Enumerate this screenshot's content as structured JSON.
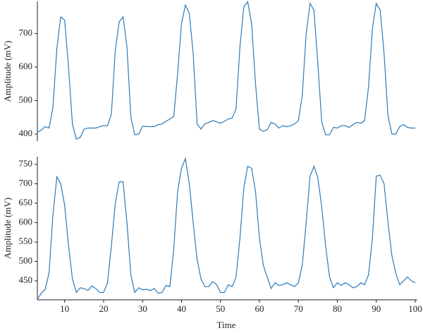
{
  "chart_data": [
    {
      "type": "line",
      "ylabel": "Amplitude (mV)",
      "x": [
        3,
        4,
        5,
        6,
        7,
        8,
        9,
        10,
        11,
        12,
        13,
        14,
        15,
        16,
        17,
        18,
        19,
        20,
        21,
        22,
        23,
        24,
        25,
        26,
        27,
        28,
        29,
        30,
        31,
        32,
        33,
        34,
        35,
        36,
        37,
        38,
        39,
        40,
        41,
        42,
        43,
        44,
        45,
        46,
        47,
        48,
        49,
        50,
        51,
        52,
        53,
        54,
        55,
        56,
        57,
        58,
        59,
        60,
        61,
        62,
        63,
        64,
        65,
        66,
        67,
        68,
        69,
        70,
        71,
        72,
        73,
        74,
        75,
        76,
        77,
        78,
        79,
        80,
        81,
        82,
        83,
        84,
        85,
        86,
        87,
        88,
        89,
        90,
        91,
        92,
        93,
        94,
        95,
        96,
        97,
        98,
        99,
        100
      ],
      "series": [
        {
          "color": "#2b7bba",
          "values": [
            405,
            412,
            422,
            418,
            480,
            655,
            750,
            740,
            600,
            430,
            385,
            390,
            415,
            418,
            418,
            418,
            422,
            425,
            425,
            460,
            650,
            735,
            750,
            660,
            450,
            398,
            400,
            423,
            423,
            422,
            422,
            428,
            430,
            438,
            445,
            452,
            580,
            730,
            785,
            760,
            640,
            430,
            415,
            430,
            435,
            440,
            437,
            432,
            438,
            445,
            448,
            475,
            660,
            780,
            795,
            730,
            550,
            415,
            408,
            413,
            435,
            430,
            418,
            425,
            422,
            425,
            430,
            440,
            515,
            700,
            790,
            770,
            610,
            435,
            398,
            398,
            420,
            418,
            425,
            425,
            420,
            428,
            435,
            432,
            440,
            540,
            715,
            790,
            770,
            640,
            455,
            400,
            400,
            422,
            428,
            420,
            418,
            418
          ]
        }
      ],
      "xlim": [
        3,
        100
      ],
      "ylim": [
        379,
        796
      ],
      "yticks": [
        400,
        500,
        600,
        700
      ]
    },
    {
      "type": "line",
      "ylabel": "Amplitude (mV)",
      "xlabel": "Time",
      "x": [
        3,
        4,
        5,
        6,
        7,
        8,
        9,
        10,
        11,
        12,
        13,
        14,
        15,
        16,
        17,
        18,
        19,
        20,
        21,
        22,
        23,
        24,
        25,
        26,
        27,
        28,
        29,
        30,
        31,
        32,
        33,
        34,
        35,
        36,
        37,
        38,
        39,
        40,
        41,
        42,
        43,
        44,
        45,
        46,
        47,
        48,
        49,
        50,
        51,
        52,
        53,
        54,
        55,
        56,
        57,
        58,
        59,
        60,
        61,
        62,
        63,
        64,
        65,
        66,
        67,
        68,
        69,
        70,
        71,
        72,
        73,
        74,
        75,
        76,
        77,
        78,
        79,
        80,
        81,
        82,
        83,
        84,
        85,
        86,
        87,
        88,
        89,
        90,
        91,
        92,
        93,
        94,
        95,
        96,
        97,
        98,
        99,
        100
      ],
      "series": [
        {
          "color": "#2b7bba",
          "values": [
            402,
            418,
            428,
            470,
            620,
            718,
            700,
            645,
            540,
            455,
            420,
            432,
            430,
            425,
            437,
            430,
            420,
            420,
            445,
            540,
            650,
            705,
            705,
            600,
            465,
            420,
            432,
            427,
            428,
            425,
            430,
            418,
            420,
            438,
            435,
            530,
            680,
            740,
            765,
            700,
            600,
            505,
            455,
            435,
            435,
            448,
            440,
            420,
            420,
            440,
            435,
            460,
            560,
            690,
            745,
            740,
            680,
            560,
            490,
            460,
            430,
            445,
            438,
            440,
            445,
            440,
            435,
            445,
            490,
            600,
            720,
            745,
            715,
            640,
            540,
            460,
            432,
            445,
            438,
            445,
            440,
            432,
            435,
            445,
            440,
            465,
            560,
            720,
            722,
            700,
            600,
            515,
            470,
            440,
            450,
            460,
            450,
            445
          ]
        }
      ],
      "xlim": [
        3,
        100
      ],
      "ylim": [
        401,
        770
      ],
      "xticks": [
        10,
        20,
        30,
        40,
        50,
        60,
        70,
        80,
        90,
        100
      ],
      "yticks": [
        450,
        500,
        550,
        600,
        650,
        700,
        750
      ]
    }
  ]
}
